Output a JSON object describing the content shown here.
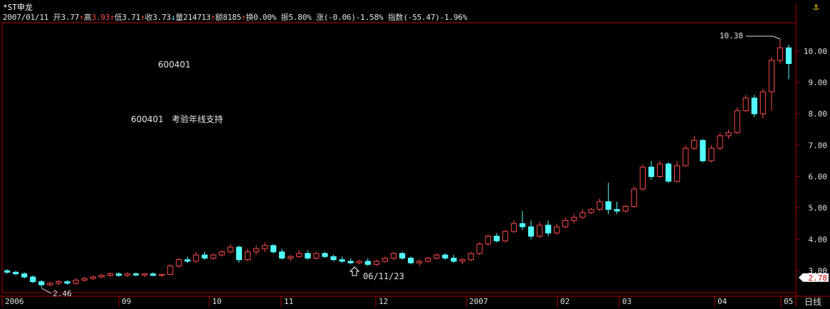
{
  "header": {
    "symbol": "*ST申龙",
    "date": "2007/01/11",
    "open_label": "开",
    "open": "3.77",
    "high_label": "高",
    "high": "3.93",
    "low_label": "低",
    "low": "3.71",
    "close_label": "收",
    "close": "3.73",
    "volume_label": "量",
    "volume": "214713",
    "amount_label": "额",
    "amount": "8185",
    "turnover_label": "换",
    "turnover": "0.00%",
    "amplitude_label": "振",
    "amplitude": "5.80%",
    "change_label": "涨",
    "change": "(-0.06)-1.58%",
    "index_label": "指数",
    "index_change": "(-55.47)-1.96%"
  },
  "annotations": {
    "code_text": "600401",
    "comment_code": "600401",
    "comment_text": "考验年线支持",
    "low_marker": "2.46",
    "high_marker": "10.38",
    "cursor_date": "06/11/23"
  },
  "current_price": "2.78",
  "period_label": "日线",
  "colors": {
    "up": "#ff4a4a",
    "down": "#54ffff",
    "axis": "#b00000",
    "current": "#ffffff"
  },
  "chart_data": {
    "type": "candlestick",
    "ylim": [
      2.3,
      10.9
    ],
    "y_ticks": [
      "3.00",
      "4.00",
      "5.00",
      "6.00",
      "7.00",
      "8.00",
      "9.00",
      "10.00"
    ],
    "x_ticks": [
      "2006",
      "09",
      "10",
      "11",
      "12",
      "2007",
      "02",
      "03",
      "04",
      "05"
    ],
    "series": [
      {
        "o": 3.0,
        "h": 3.05,
        "l": 2.9,
        "c": 2.95
      },
      {
        "o": 2.95,
        "h": 3.0,
        "l": 2.85,
        "c": 2.9
      },
      {
        "o": 2.9,
        "h": 2.95,
        "l": 2.75,
        "c": 2.8
      },
      {
        "o": 2.8,
        "h": 2.85,
        "l": 2.6,
        "c": 2.65
      },
      {
        "o": 2.65,
        "h": 2.7,
        "l": 2.46,
        "c": 2.55
      },
      {
        "o": 2.55,
        "h": 2.65,
        "l": 2.5,
        "c": 2.6
      },
      {
        "o": 2.6,
        "h": 2.7,
        "l": 2.55,
        "c": 2.65
      },
      {
        "o": 2.65,
        "h": 2.7,
        "l": 2.55,
        "c": 2.6
      },
      {
        "o": 2.6,
        "h": 2.75,
        "l": 2.55,
        "c": 2.7
      },
      {
        "o": 2.7,
        "h": 2.8,
        "l": 2.65,
        "c": 2.75
      },
      {
        "o": 2.75,
        "h": 2.85,
        "l": 2.7,
        "c": 2.8
      },
      {
        "o": 2.8,
        "h": 2.9,
        "l": 2.75,
        "c": 2.85
      },
      {
        "o": 2.85,
        "h": 2.95,
        "l": 2.8,
        "c": 2.9
      },
      {
        "o": 2.9,
        "h": 2.95,
        "l": 2.8,
        "c": 2.85
      },
      {
        "o": 2.85,
        "h": 2.95,
        "l": 2.8,
        "c": 2.9
      },
      {
        "o": 2.9,
        "h": 2.95,
        "l": 2.82,
        "c": 2.86
      },
      {
        "o": 2.86,
        "h": 2.92,
        "l": 2.8,
        "c": 2.9
      },
      {
        "o": 2.9,
        "h": 2.95,
        "l": 2.82,
        "c": 2.85
      },
      {
        "o": 2.85,
        "h": 2.9,
        "l": 2.8,
        "c": 2.88
      },
      {
        "o": 2.88,
        "h": 3.2,
        "l": 2.85,
        "c": 3.15
      },
      {
        "o": 3.15,
        "h": 3.4,
        "l": 3.1,
        "c": 3.35
      },
      {
        "o": 3.35,
        "h": 3.45,
        "l": 3.25,
        "c": 3.3
      },
      {
        "o": 3.3,
        "h": 3.6,
        "l": 3.25,
        "c": 3.5
      },
      {
        "o": 3.5,
        "h": 3.6,
        "l": 3.35,
        "c": 3.4
      },
      {
        "o": 3.4,
        "h": 3.55,
        "l": 3.35,
        "c": 3.5
      },
      {
        "o": 3.5,
        "h": 3.65,
        "l": 3.45,
        "c": 3.6
      },
      {
        "o": 3.6,
        "h": 3.85,
        "l": 3.55,
        "c": 3.75
      },
      {
        "o": 3.75,
        "h": 3.8,
        "l": 3.25,
        "c": 3.35
      },
      {
        "o": 3.35,
        "h": 3.7,
        "l": 3.3,
        "c": 3.6
      },
      {
        "o": 3.6,
        "h": 3.8,
        "l": 3.5,
        "c": 3.7
      },
      {
        "o": 3.7,
        "h": 3.9,
        "l": 3.6,
        "c": 3.8
      },
      {
        "o": 3.8,
        "h": 3.85,
        "l": 3.55,
        "c": 3.6
      },
      {
        "o": 3.6,
        "h": 3.7,
        "l": 3.35,
        "c": 3.4
      },
      {
        "o": 3.4,
        "h": 3.5,
        "l": 3.3,
        "c": 3.45
      },
      {
        "o": 3.45,
        "h": 3.65,
        "l": 3.4,
        "c": 3.55
      },
      {
        "o": 3.55,
        "h": 3.65,
        "l": 3.35,
        "c": 3.4
      },
      {
        "o": 3.4,
        "h": 3.6,
        "l": 3.35,
        "c": 3.55
      },
      {
        "o": 3.55,
        "h": 3.6,
        "l": 3.4,
        "c": 3.45
      },
      {
        "o": 3.45,
        "h": 3.5,
        "l": 3.3,
        "c": 3.35
      },
      {
        "o": 3.35,
        "h": 3.45,
        "l": 3.25,
        "c": 3.3
      },
      {
        "o": 3.3,
        "h": 3.4,
        "l": 3.2,
        "c": 3.25
      },
      {
        "o": 3.25,
        "h": 3.35,
        "l": 3.2,
        "c": 3.3
      },
      {
        "o": 3.3,
        "h": 3.4,
        "l": 3.15,
        "c": 3.2
      },
      {
        "o": 3.2,
        "h": 3.35,
        "l": 3.15,
        "c": 3.3
      },
      {
        "o": 3.3,
        "h": 3.45,
        "l": 3.25,
        "c": 3.4
      },
      {
        "o": 3.4,
        "h": 3.6,
        "l": 3.35,
        "c": 3.55
      },
      {
        "o": 3.55,
        "h": 3.6,
        "l": 3.35,
        "c": 3.4
      },
      {
        "o": 3.4,
        "h": 3.45,
        "l": 3.2,
        "c": 3.25
      },
      {
        "o": 3.25,
        "h": 3.35,
        "l": 3.15,
        "c": 3.3
      },
      {
        "o": 3.3,
        "h": 3.45,
        "l": 3.25,
        "c": 3.4
      },
      {
        "o": 3.4,
        "h": 3.55,
        "l": 3.35,
        "c": 3.5
      },
      {
        "o": 3.5,
        "h": 3.55,
        "l": 3.35,
        "c": 3.4
      },
      {
        "o": 3.4,
        "h": 3.5,
        "l": 3.25,
        "c": 3.3
      },
      {
        "o": 3.3,
        "h": 3.4,
        "l": 3.2,
        "c": 3.35
      },
      {
        "o": 3.35,
        "h": 3.6,
        "l": 3.3,
        "c": 3.55
      },
      {
        "o": 3.55,
        "h": 3.9,
        "l": 3.5,
        "c": 3.85
      },
      {
        "o": 3.85,
        "h": 4.15,
        "l": 3.8,
        "c": 4.1
      },
      {
        "o": 4.1,
        "h": 4.2,
        "l": 3.9,
        "c": 3.95
      },
      {
        "o": 3.95,
        "h": 4.3,
        "l": 3.9,
        "c": 4.25
      },
      {
        "o": 4.25,
        "h": 4.6,
        "l": 4.2,
        "c": 4.5
      },
      {
        "o": 4.5,
        "h": 4.9,
        "l": 4.3,
        "c": 4.4
      },
      {
        "o": 4.4,
        "h": 4.6,
        "l": 4.0,
        "c": 4.1
      },
      {
        "o": 4.1,
        "h": 4.55,
        "l": 4.05,
        "c": 4.45
      },
      {
        "o": 4.45,
        "h": 4.6,
        "l": 4.1,
        "c": 4.2
      },
      {
        "o": 4.2,
        "h": 4.5,
        "l": 4.15,
        "c": 4.4
      },
      {
        "o": 4.4,
        "h": 4.7,
        "l": 4.35,
        "c": 4.6
      },
      {
        "o": 4.6,
        "h": 4.8,
        "l": 4.5,
        "c": 4.7
      },
      {
        "o": 4.7,
        "h": 4.95,
        "l": 4.65,
        "c": 4.85
      },
      {
        "o": 4.85,
        "h": 5.0,
        "l": 4.8,
        "c": 4.95
      },
      {
        "o": 4.95,
        "h": 5.3,
        "l": 4.9,
        "c": 5.2
      },
      {
        "o": 5.2,
        "h": 5.8,
        "l": 4.8,
        "c": 4.95
      },
      {
        "o": 4.95,
        "h": 5.2,
        "l": 4.8,
        "c": 4.9
      },
      {
        "o": 4.9,
        "h": 5.1,
        "l": 4.85,
        "c": 5.05
      },
      {
        "o": 5.05,
        "h": 5.7,
        "l": 5.0,
        "c": 5.6
      },
      {
        "o": 5.6,
        "h": 6.4,
        "l": 5.55,
        "c": 6.3
      },
      {
        "o": 6.3,
        "h": 6.5,
        "l": 5.9,
        "c": 6.0
      },
      {
        "o": 6.0,
        "h": 6.5,
        "l": 5.95,
        "c": 6.4
      },
      {
        "o": 6.4,
        "h": 6.45,
        "l": 5.8,
        "c": 5.85
      },
      {
        "o": 5.85,
        "h": 6.5,
        "l": 5.8,
        "c": 6.35
      },
      {
        "o": 6.35,
        "h": 7.0,
        "l": 6.3,
        "c": 6.9
      },
      {
        "o": 6.9,
        "h": 7.3,
        "l": 6.85,
        "c": 7.15
      },
      {
        "o": 7.15,
        "h": 7.2,
        "l": 6.45,
        "c": 6.5
      },
      {
        "o": 6.5,
        "h": 7.0,
        "l": 6.45,
        "c": 6.9
      },
      {
        "o": 6.9,
        "h": 7.4,
        "l": 6.85,
        "c": 7.3
      },
      {
        "o": 7.3,
        "h": 7.5,
        "l": 7.2,
        "c": 7.4
      },
      {
        "o": 7.4,
        "h": 8.2,
        "l": 7.35,
        "c": 8.1
      },
      {
        "o": 8.1,
        "h": 8.6,
        "l": 8.05,
        "c": 8.5
      },
      {
        "o": 8.5,
        "h": 8.6,
        "l": 7.9,
        "c": 8.0
      },
      {
        "o": 8.0,
        "h": 8.8,
        "l": 7.85,
        "c": 8.7
      },
      {
        "o": 8.7,
        "h": 9.8,
        "l": 8.1,
        "c": 9.7
      },
      {
        "o": 9.7,
        "h": 10.38,
        "l": 9.6,
        "c": 10.1
      },
      {
        "o": 10.1,
        "h": 10.2,
        "l": 9.1,
        "c": 9.6
      }
    ]
  }
}
